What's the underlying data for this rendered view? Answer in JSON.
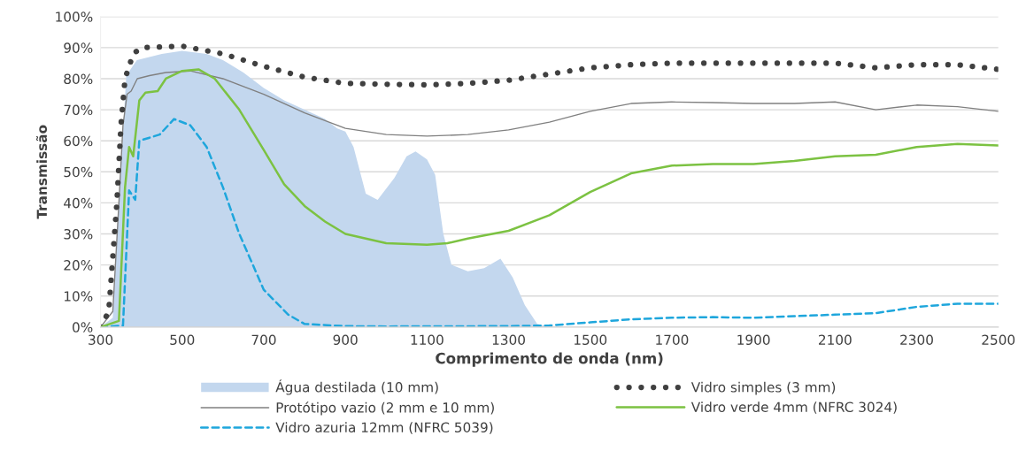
{
  "chart_data": {
    "type": "line",
    "xlabel": "Comprimento de onda (nm)",
    "ylabel": "Transmissão",
    "xlim": [
      300,
      2500
    ],
    "xticks": [
      300,
      500,
      700,
      900,
      1100,
      1300,
      1500,
      1700,
      1900,
      2100,
      2300,
      2500
    ],
    "ylim": [
      0,
      100
    ],
    "yticks": [
      {
        "value": 0,
        "label": "0%"
      },
      {
        "value": 10,
        "label": "10%"
      },
      {
        "value": 20,
        "label": "20%"
      },
      {
        "value": 30,
        "label": "30%"
      },
      {
        "value": 40,
        "label": "40%"
      },
      {
        "value": 50,
        "label": "50%"
      },
      {
        "value": 60,
        "label": "60%"
      },
      {
        "value": 70,
        "label": "70%"
      },
      {
        "value": 80,
        "label": "80%"
      },
      {
        "value": 90,
        "label": "90%"
      },
      {
        "value": 100,
        "label": "100%"
      }
    ],
    "grid": "y",
    "legend": "bottom",
    "series": [
      {
        "name": "Água destilada (10 mm)",
        "type": "area",
        "color": "#c3d7ee",
        "x": [
          300,
          330,
          345,
          363,
          389,
          450,
          500,
          560,
          600,
          650,
          700,
          750,
          800,
          850,
          880,
          900,
          920,
          950,
          979,
          1020,
          1050,
          1072,
          1100,
          1120,
          1140,
          1160,
          1200,
          1240,
          1280,
          1310,
          1340,
          1370,
          1400,
          2500
        ],
        "values": [
          0,
          3,
          40,
          81,
          86,
          88,
          89,
          88,
          86,
          82,
          77,
          73,
          70,
          67,
          64,
          63,
          58,
          43,
          41,
          48,
          55,
          56.6,
          54,
          49,
          30,
          20,
          18,
          19,
          22,
          16,
          7,
          1,
          0,
          0
        ]
      },
      {
        "name": "Protótipo vazio (2 mm e 10 mm)",
        "type": "line",
        "line_style": "solid",
        "color": "#808080",
        "x": [
          300,
          330,
          345,
          355,
          365,
          375,
          390,
          420,
          460,
          520,
          600,
          700,
          800,
          900,
          1000,
          1100,
          1200,
          1300,
          1400,
          1500,
          1600,
          1700,
          1800,
          1900,
          2000,
          2100,
          2200,
          2300,
          2400,
          2500
        ],
        "values": [
          0,
          5,
          40,
          65,
          75,
          76,
          80,
          81,
          82,
          82.5,
          80,
          75,
          69,
          64,
          62,
          61.5,
          62,
          63.5,
          66,
          69.5,
          72,
          72.5,
          72.3,
          72,
          72,
          72.5,
          70,
          71.5,
          71,
          69.5
        ]
      },
      {
        "name": "Vidro azuria 12mm (NFRC 5039)",
        "type": "line",
        "line_style": "dashed",
        "color": "#1ea6dc",
        "x": [
          300,
          355,
          370,
          385,
          395,
          420,
          445,
          480,
          520,
          560,
          600,
          640,
          700,
          760,
          800,
          900,
          1000,
          1300,
          1400,
          1500,
          1600,
          1700,
          1800,
          1900,
          2000,
          2100,
          2200,
          2300,
          2400,
          2500
        ],
        "values": [
          0,
          0.5,
          44,
          41,
          60,
          61,
          62,
          67,
          65,
          58,
          45,
          30,
          12,
          4,
          1,
          0.3,
          0.2,
          0.3,
          0.5,
          1.5,
          2.5,
          3,
          3.2,
          3,
          3.5,
          4,
          4.5,
          6.5,
          7.5,
          7.5
        ]
      },
      {
        "name": "Vidro simples (3 mm)",
        "type": "line",
        "line_style": "dotted",
        "color": "#404040",
        "x": [
          300,
          320,
          340,
          350,
          360,
          380,
          400,
          500,
          600,
          700,
          800,
          900,
          1000,
          1100,
          1200,
          1300,
          1400,
          1500,
          1600,
          1700,
          1800,
          1900,
          2000,
          2100,
          2200,
          2300,
          2400,
          2500
        ],
        "values": [
          0,
          5,
          40,
          65,
          80,
          88,
          90,
          90.5,
          88,
          84,
          80.5,
          78.5,
          78.2,
          78,
          78.5,
          79.5,
          81.5,
          83.5,
          84.5,
          85,
          85,
          85,
          85,
          85,
          83.5,
          84.5,
          84.5,
          83
        ]
      },
      {
        "name": "Vidro verde 4mm (NFRC 3024)",
        "type": "line",
        "line_style": "solid",
        "color": "#7cc242",
        "x": [
          300,
          345,
          360,
          370,
          380,
          395,
          410,
          440,
          460,
          500,
          540,
          580,
          640,
          700,
          750,
          800,
          850,
          900,
          1000,
          1100,
          1150,
          1200,
          1300,
          1400,
          1500,
          1600,
          1700,
          1800,
          1900,
          2000,
          2100,
          2200,
          2300,
          2400,
          2500
        ],
        "values": [
          0,
          2,
          45,
          58,
          55,
          73,
          75.5,
          76,
          80,
          82.5,
          83,
          80,
          70,
          57,
          46,
          39,
          34,
          30,
          27,
          26.5,
          27,
          28.5,
          31,
          36,
          43.5,
          49.5,
          52,
          52.5,
          52.5,
          53.5,
          55,
          55.5,
          58,
          59,
          58.5
        ]
      }
    ]
  }
}
